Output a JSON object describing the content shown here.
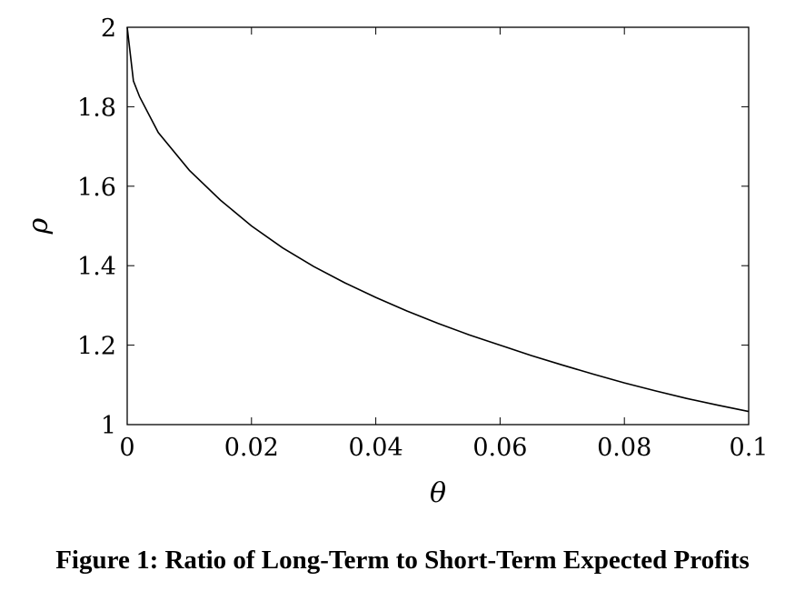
{
  "caption": "Figure 1: Ratio of Long-Term to Short-Term Expected Profits",
  "chart_data": {
    "type": "line",
    "xlabel": "θ",
    "ylabel": "ρ",
    "xlim": [
      0,
      0.1
    ],
    "ylim": [
      1,
      2
    ],
    "x_ticks": [
      "0",
      "0.02",
      "0.04",
      "0.06",
      "0.08",
      "0.1"
    ],
    "y_ticks": [
      "1",
      "1.2",
      "1.4",
      "1.6",
      "1.8",
      "2"
    ],
    "grid": false,
    "series": [
      {
        "x": [
          0,
          0.001,
          0.002,
          0.005,
          0.01,
          0.015,
          0.02,
          0.025,
          0.03,
          0.035,
          0.04,
          0.045,
          0.05,
          0.055,
          0.06,
          0.065,
          0.07,
          0.075,
          0.08,
          0.085,
          0.09,
          0.095,
          0.1
        ],
        "y": [
          2.0,
          1.865,
          1.825,
          1.735,
          1.64,
          1.565,
          1.5,
          1.445,
          1.398,
          1.357,
          1.32,
          1.286,
          1.255,
          1.226,
          1.2,
          1.174,
          1.15,
          1.127,
          1.105,
          1.085,
          1.066,
          1.049,
          1.033
        ],
        "color": "#000000"
      }
    ]
  }
}
